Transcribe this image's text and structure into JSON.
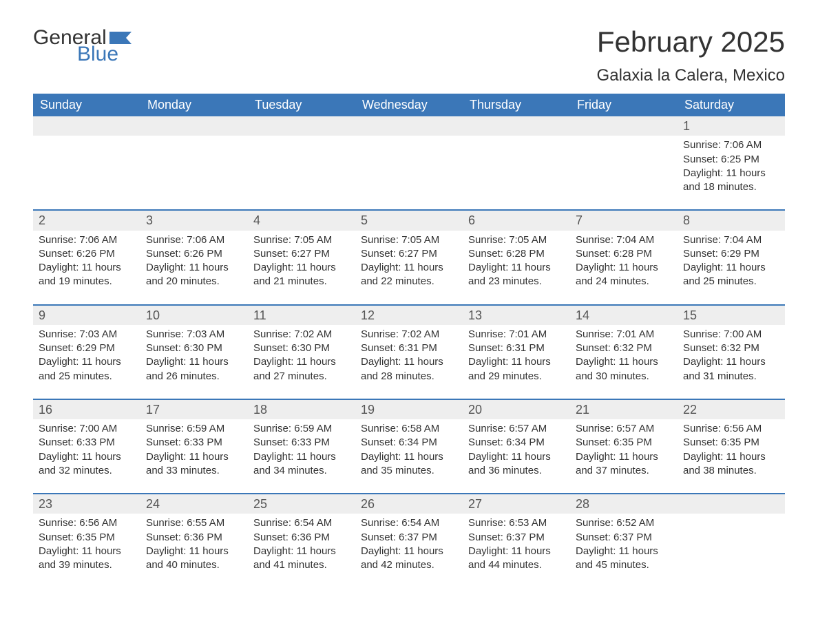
{
  "logo": {
    "word1": "General",
    "word2": "Blue"
  },
  "title": "February 2025",
  "location": "Galaxia la Calera, Mexico",
  "colors": {
    "header_bg": "#3b77b8",
    "header_text": "#ffffff",
    "daynum_bg": "#eeeeee",
    "row_border": "#3b77b8",
    "body_text": "#333333",
    "bg": "#ffffff"
  },
  "day_headers": [
    "Sunday",
    "Monday",
    "Tuesday",
    "Wednesday",
    "Thursday",
    "Friday",
    "Saturday"
  ],
  "weeks": [
    [
      {
        "day": null
      },
      {
        "day": null
      },
      {
        "day": null
      },
      {
        "day": null
      },
      {
        "day": null
      },
      {
        "day": null
      },
      {
        "day": 1,
        "sunrise": "7:06 AM",
        "sunset": "6:25 PM",
        "daylight": "11 hours and 18 minutes."
      }
    ],
    [
      {
        "day": 2,
        "sunrise": "7:06 AM",
        "sunset": "6:26 PM",
        "daylight": "11 hours and 19 minutes."
      },
      {
        "day": 3,
        "sunrise": "7:06 AM",
        "sunset": "6:26 PM",
        "daylight": "11 hours and 20 minutes."
      },
      {
        "day": 4,
        "sunrise": "7:05 AM",
        "sunset": "6:27 PM",
        "daylight": "11 hours and 21 minutes."
      },
      {
        "day": 5,
        "sunrise": "7:05 AM",
        "sunset": "6:27 PM",
        "daylight": "11 hours and 22 minutes."
      },
      {
        "day": 6,
        "sunrise": "7:05 AM",
        "sunset": "6:28 PM",
        "daylight": "11 hours and 23 minutes."
      },
      {
        "day": 7,
        "sunrise": "7:04 AM",
        "sunset": "6:28 PM",
        "daylight": "11 hours and 24 minutes."
      },
      {
        "day": 8,
        "sunrise": "7:04 AM",
        "sunset": "6:29 PM",
        "daylight": "11 hours and 25 minutes."
      }
    ],
    [
      {
        "day": 9,
        "sunrise": "7:03 AM",
        "sunset": "6:29 PM",
        "daylight": "11 hours and 25 minutes."
      },
      {
        "day": 10,
        "sunrise": "7:03 AM",
        "sunset": "6:30 PM",
        "daylight": "11 hours and 26 minutes."
      },
      {
        "day": 11,
        "sunrise": "7:02 AM",
        "sunset": "6:30 PM",
        "daylight": "11 hours and 27 minutes."
      },
      {
        "day": 12,
        "sunrise": "7:02 AM",
        "sunset": "6:31 PM",
        "daylight": "11 hours and 28 minutes."
      },
      {
        "day": 13,
        "sunrise": "7:01 AM",
        "sunset": "6:31 PM",
        "daylight": "11 hours and 29 minutes."
      },
      {
        "day": 14,
        "sunrise": "7:01 AM",
        "sunset": "6:32 PM",
        "daylight": "11 hours and 30 minutes."
      },
      {
        "day": 15,
        "sunrise": "7:00 AM",
        "sunset": "6:32 PM",
        "daylight": "11 hours and 31 minutes."
      }
    ],
    [
      {
        "day": 16,
        "sunrise": "7:00 AM",
        "sunset": "6:33 PM",
        "daylight": "11 hours and 32 minutes."
      },
      {
        "day": 17,
        "sunrise": "6:59 AM",
        "sunset": "6:33 PM",
        "daylight": "11 hours and 33 minutes."
      },
      {
        "day": 18,
        "sunrise": "6:59 AM",
        "sunset": "6:33 PM",
        "daylight": "11 hours and 34 minutes."
      },
      {
        "day": 19,
        "sunrise": "6:58 AM",
        "sunset": "6:34 PM",
        "daylight": "11 hours and 35 minutes."
      },
      {
        "day": 20,
        "sunrise": "6:57 AM",
        "sunset": "6:34 PM",
        "daylight": "11 hours and 36 minutes."
      },
      {
        "day": 21,
        "sunrise": "6:57 AM",
        "sunset": "6:35 PM",
        "daylight": "11 hours and 37 minutes."
      },
      {
        "day": 22,
        "sunrise": "6:56 AM",
        "sunset": "6:35 PM",
        "daylight": "11 hours and 38 minutes."
      }
    ],
    [
      {
        "day": 23,
        "sunrise": "6:56 AM",
        "sunset": "6:35 PM",
        "daylight": "11 hours and 39 minutes."
      },
      {
        "day": 24,
        "sunrise": "6:55 AM",
        "sunset": "6:36 PM",
        "daylight": "11 hours and 40 minutes."
      },
      {
        "day": 25,
        "sunrise": "6:54 AM",
        "sunset": "6:36 PM",
        "daylight": "11 hours and 41 minutes."
      },
      {
        "day": 26,
        "sunrise": "6:54 AM",
        "sunset": "6:37 PM",
        "daylight": "11 hours and 42 minutes."
      },
      {
        "day": 27,
        "sunrise": "6:53 AM",
        "sunset": "6:37 PM",
        "daylight": "11 hours and 44 minutes."
      },
      {
        "day": 28,
        "sunrise": "6:52 AM",
        "sunset": "6:37 PM",
        "daylight": "11 hours and 45 minutes."
      },
      {
        "day": null
      }
    ]
  ],
  "labels": {
    "sunrise": "Sunrise:",
    "sunset": "Sunset:",
    "daylight": "Daylight:"
  }
}
